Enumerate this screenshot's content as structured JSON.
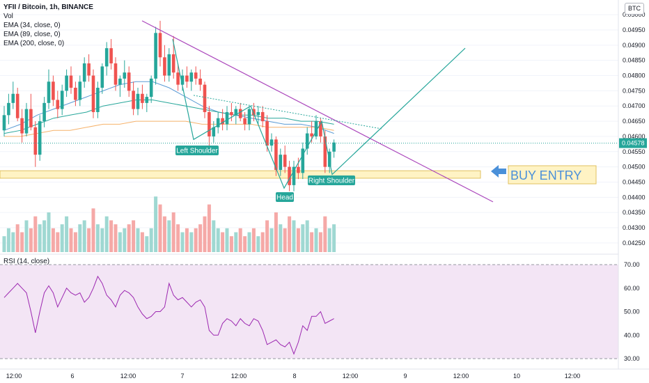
{
  "header": {
    "title": "YFII / Bitcoin, 1h, BINANCE",
    "indicators": [
      "Vol",
      "EMA (34, close, 0)",
      "EMA (89, close, 0)",
      "EMA (200, close, 0)"
    ],
    "currency": "BTC"
  },
  "rsi_label": "RSI (14, close)",
  "colors": {
    "up": "#26a69a",
    "down": "#ef5350",
    "trend": "#ab47bc",
    "pattern": "#26a69a",
    "zone": "#fff3c4",
    "rsi": "#9c27b0",
    "rsi_band": "#f3e5f5"
  },
  "chart_data": {
    "type": "candlestick",
    "price_axis": {
      "ticks": [
        0.0425,
        0.043,
        0.0435,
        0.044,
        0.0445,
        0.045,
        0.0455,
        0.046,
        0.0465,
        0.047,
        0.0475,
        0.048,
        0.0485,
        0.049,
        0.0495,
        0.05
      ],
      "tick_labels": [
        "0.04250",
        "0.04300",
        "0.04350",
        "0.04400",
        "0.04450",
        "0.04500",
        "0.04550",
        "0.04600",
        "0.04650",
        "0.04700",
        "0.04750",
        "0.04800",
        "0.04850",
        "0.04900",
        "0.04950",
        "0.05000"
      ],
      "range": [
        0.0422,
        0.0503
      ]
    },
    "current_price": 0.04578,
    "current_price_label": "0.04578",
    "time_labels": [
      "12:00",
      "6",
      "12:00",
      "7",
      "12:00",
      "8",
      "12:00",
      "9",
      "12:00",
      "10",
      "12:00"
    ],
    "candles_ohlc": [
      [
        0.0462,
        0.047,
        0.046,
        0.0467
      ],
      [
        0.0467,
        0.0474,
        0.0464,
        0.0471
      ],
      [
        0.0471,
        0.0478,
        0.0469,
        0.0474
      ],
      [
        0.0474,
        0.0476,
        0.0465,
        0.0466
      ],
      [
        0.0466,
        0.0469,
        0.0458,
        0.0461
      ],
      [
        0.0461,
        0.0471,
        0.046,
        0.0469
      ],
      [
        0.0469,
        0.0474,
        0.0462,
        0.0463
      ],
      [
        0.0463,
        0.0465,
        0.045,
        0.0454
      ],
      [
        0.0454,
        0.0467,
        0.0452,
        0.0465
      ],
      [
        0.0465,
        0.0473,
        0.0463,
        0.0471
      ],
      [
        0.0471,
        0.0482,
        0.0469,
        0.0478
      ],
      [
        0.0478,
        0.048,
        0.047,
        0.0472
      ],
      [
        0.0472,
        0.0475,
        0.0466,
        0.0469
      ],
      [
        0.0469,
        0.0477,
        0.0467,
        0.0475
      ],
      [
        0.0475,
        0.0482,
        0.0473,
        0.048
      ],
      [
        0.048,
        0.0483,
        0.0474,
        0.0476
      ],
      [
        0.0476,
        0.0478,
        0.047,
        0.0472
      ],
      [
        0.0472,
        0.048,
        0.047,
        0.0478
      ],
      [
        0.0478,
        0.0486,
        0.0476,
        0.0484
      ],
      [
        0.0484,
        0.0487,
        0.0478,
        0.048
      ],
      [
        0.048,
        0.0482,
        0.0466,
        0.0468
      ],
      [
        0.0468,
        0.0478,
        0.0466,
        0.0476
      ],
      [
        0.0476,
        0.0484,
        0.0474,
        0.0483
      ],
      [
        0.0483,
        0.0491,
        0.048,
        0.0489
      ],
      [
        0.0489,
        0.0492,
        0.0482,
        0.0484
      ],
      [
        0.0484,
        0.0486,
        0.0475,
        0.0477
      ],
      [
        0.0477,
        0.048,
        0.0473,
        0.0479
      ],
      [
        0.0479,
        0.0485,
        0.0476,
        0.0481
      ],
      [
        0.0481,
        0.0483,
        0.0473,
        0.0475
      ],
      [
        0.0475,
        0.0478,
        0.0467,
        0.0469
      ],
      [
        0.0469,
        0.0476,
        0.0467,
        0.0474
      ],
      [
        0.0474,
        0.0477,
        0.0469,
        0.0471
      ],
      [
        0.0471,
        0.0474,
        0.0468,
        0.0473
      ],
      [
        0.0473,
        0.048,
        0.0471,
        0.0479
      ],
      [
        0.0479,
        0.0496,
        0.0477,
        0.0494
      ],
      [
        0.0494,
        0.0498,
        0.0483,
        0.0486
      ],
      [
        0.0486,
        0.049,
        0.0478,
        0.048
      ],
      [
        0.048,
        0.0489,
        0.0478,
        0.0487
      ],
      [
        0.0487,
        0.0493,
        0.0479,
        0.0481
      ],
      [
        0.0481,
        0.0484,
        0.0475,
        0.0477
      ],
      [
        0.0477,
        0.0482,
        0.0475,
        0.048
      ],
      [
        0.048,
        0.0483,
        0.0476,
        0.0478
      ],
      [
        0.0478,
        0.0482,
        0.0475,
        0.0481
      ],
      [
        0.0481,
        0.0483,
        0.0477,
        0.0479
      ],
      [
        0.0479,
        0.0482,
        0.0475,
        0.0477
      ],
      [
        0.0477,
        0.0478,
        0.0466,
        0.0468
      ],
      [
        0.0468,
        0.047,
        0.0457,
        0.046
      ],
      [
        0.046,
        0.0465,
        0.0458,
        0.0463
      ],
      [
        0.0463,
        0.0468,
        0.0461,
        0.0466
      ],
      [
        0.0466,
        0.0469,
        0.0462,
        0.0464
      ],
      [
        0.0464,
        0.047,
        0.0462,
        0.0468
      ],
      [
        0.0468,
        0.0471,
        0.0465,
        0.0467
      ],
      [
        0.0467,
        0.047,
        0.0464,
        0.0469
      ],
      [
        0.0469,
        0.0471,
        0.0465,
        0.0466
      ],
      [
        0.0466,
        0.0468,
        0.0462,
        0.0464
      ],
      [
        0.0464,
        0.047,
        0.0462,
        0.0469
      ],
      [
        0.0469,
        0.0471,
        0.0465,
        0.0467
      ],
      [
        0.0467,
        0.047,
        0.0464,
        0.0468
      ],
      [
        0.0468,
        0.047,
        0.0463,
        0.0465
      ],
      [
        0.0465,
        0.0467,
        0.0455,
        0.0457
      ],
      [
        0.0457,
        0.0461,
        0.0455,
        0.0459
      ],
      [
        0.0459,
        0.046,
        0.0447,
        0.0449
      ],
      [
        0.0449,
        0.0456,
        0.0447,
        0.0454
      ],
      [
        0.0454,
        0.0457,
        0.0448,
        0.045
      ],
      [
        0.045,
        0.0452,
        0.0442,
        0.0444
      ],
      [
        0.0444,
        0.0452,
        0.0442,
        0.045
      ],
      [
        0.045,
        0.0453,
        0.0446,
        0.0448
      ],
      [
        0.0448,
        0.0458,
        0.0446,
        0.0456
      ],
      [
        0.0456,
        0.0463,
        0.0454,
        0.0461
      ],
      [
        0.0461,
        0.0465,
        0.0458,
        0.046
      ],
      [
        0.046,
        0.0467,
        0.0459,
        0.0465
      ],
      [
        0.0465,
        0.0466,
        0.0458,
        0.046
      ],
      [
        0.046,
        0.0462,
        0.0448,
        0.045
      ],
      [
        0.045,
        0.0456,
        0.0448,
        0.0455
      ],
      [
        0.0455,
        0.0459,
        0.0453,
        0.0458
      ]
    ],
    "volume_note_series": "Vol",
    "volumes": [
      4,
      6,
      5,
      7,
      5,
      8,
      6,
      9,
      7,
      8,
      10,
      6,
      5,
      7,
      9,
      6,
      5,
      7,
      8,
      6,
      11,
      7,
      6,
      9,
      8,
      7,
      5,
      6,
      7,
      8,
      6,
      5,
      4,
      6,
      14,
      12,
      9,
      8,
      10,
      7,
      5,
      6,
      5,
      6,
      7,
      9,
      12,
      8,
      6,
      5,
      6,
      4,
      5,
      6,
      4,
      5,
      6,
      4,
      5,
      8,
      6,
      10,
      7,
      6,
      9,
      8,
      6,
      7,
      8,
      5,
      6,
      5,
      9,
      6,
      7
    ],
    "ema_lines": [
      {
        "name": "EMA (34, close, 0)",
        "color": "#5b9bd5",
        "values": [
          0.0462,
          0.0464,
          0.0467,
          0.0469,
          0.0471,
          0.0473,
          0.0475,
          0.0477,
          0.0478,
          0.0478,
          0.0476,
          0.0473,
          0.047,
          0.0468,
          0.0467,
          0.0466,
          0.0465,
          0.0464,
          0.0464,
          0.0463,
          0.0461
        ]
      },
      {
        "name": "EMA (89, close, 0)",
        "color": "#26a69a",
        "values": [
          0.0461,
          0.0462,
          0.0464,
          0.0466,
          0.0467,
          0.0468,
          0.047,
          0.0471,
          0.0472,
          0.0472,
          0.0471,
          0.047,
          0.0469,
          0.0468,
          0.0467,
          0.0467,
          0.0466,
          0.0466,
          0.0465,
          0.0465,
          0.0464
        ]
      },
      {
        "name": "EMA (200, close, 0)",
        "color": "#f6b26b",
        "values": [
          0.046,
          0.046,
          0.0461,
          0.0462,
          0.0462,
          0.0463,
          0.0464,
          0.0464,
          0.0465,
          0.0465,
          0.0465,
          0.0465,
          0.0464,
          0.0464,
          0.0464,
          0.0464,
          0.0463,
          0.0463,
          0.0463,
          0.0463,
          0.0462
        ]
      }
    ],
    "annotations": {
      "left_shoulder": "Left Shoulder",
      "head": "Head",
      "right_shoulder": "Right Shoulder",
      "buy_entry": "BUY ENTRY",
      "support_zone": [
        0.04465,
        0.04485
      ],
      "trendline": [
        [
          0.0498,
          0
        ],
        [
          0.0438,
          1
        ]
      ]
    },
    "rsi": {
      "axis_ticks": [
        30,
        40,
        50,
        60,
        70
      ],
      "axis_labels": [
        "30.00",
        "40.00",
        "50.00",
        "60.00",
        "70.00"
      ],
      "band": [
        30,
        70
      ],
      "values": [
        56,
        58,
        60,
        62,
        60,
        58,
        50,
        41,
        50,
        58,
        61,
        58,
        52,
        56,
        60,
        58,
        57,
        58,
        54,
        56,
        60,
        65,
        62,
        57,
        55,
        52,
        57,
        59,
        58,
        56,
        52,
        49,
        47,
        48,
        50,
        50,
        52,
        62,
        57,
        55,
        56,
        54,
        52,
        54,
        55,
        52,
        42,
        40,
        40,
        45,
        47,
        46,
        44,
        47,
        45,
        44,
        47,
        46,
        42,
        36,
        37,
        38,
        36,
        35,
        37,
        32,
        37,
        44,
        42,
        48,
        48,
        50,
        45,
        46,
        47
      ]
    }
  }
}
